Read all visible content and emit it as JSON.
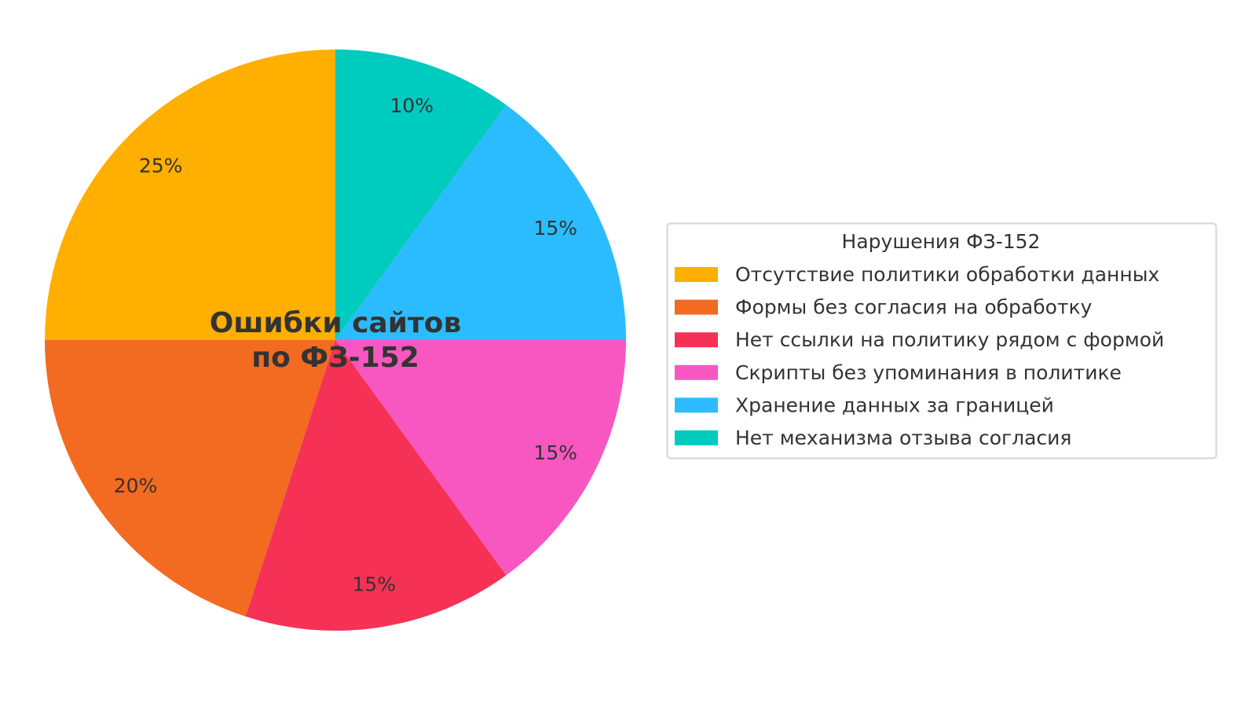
{
  "chart_data": {
    "type": "pie",
    "title": "Ошибки сайтов\nпо ФЗ-152",
    "title_lines": [
      "Ошибки сайтов",
      "по ФЗ-152"
    ],
    "start_angle_deg": 90,
    "direction": "counterclockwise",
    "legend": {
      "title": "Нарушения ФЗ-152",
      "placement": "right"
    },
    "slices": [
      {
        "label": "Отсутствие политики обработки данных",
        "value": 25,
        "pct_label": "25%",
        "color": "#FFAF00"
      },
      {
        "label": "Формы без согласия на обработку",
        "value": 20,
        "pct_label": "20%",
        "color": "#F26B21"
      },
      {
        "label": "Нет ссылки на политику рядом с формой",
        "value": 15,
        "pct_label": "15%",
        "color": "#F53255"
      },
      {
        "label": "Скрипты без упоминания в политике",
        "value": 15,
        "pct_label": "15%",
        "color": "#F857C1"
      },
      {
        "label": "Хранение данных за границей",
        "value": 15,
        "pct_label": "15%",
        "color": "#2BBCFF"
      },
      {
        "label": "Нет механизма отзыва согласия",
        "value": 10,
        "pct_label": "10%",
        "color": "#00CBBF"
      }
    ]
  }
}
